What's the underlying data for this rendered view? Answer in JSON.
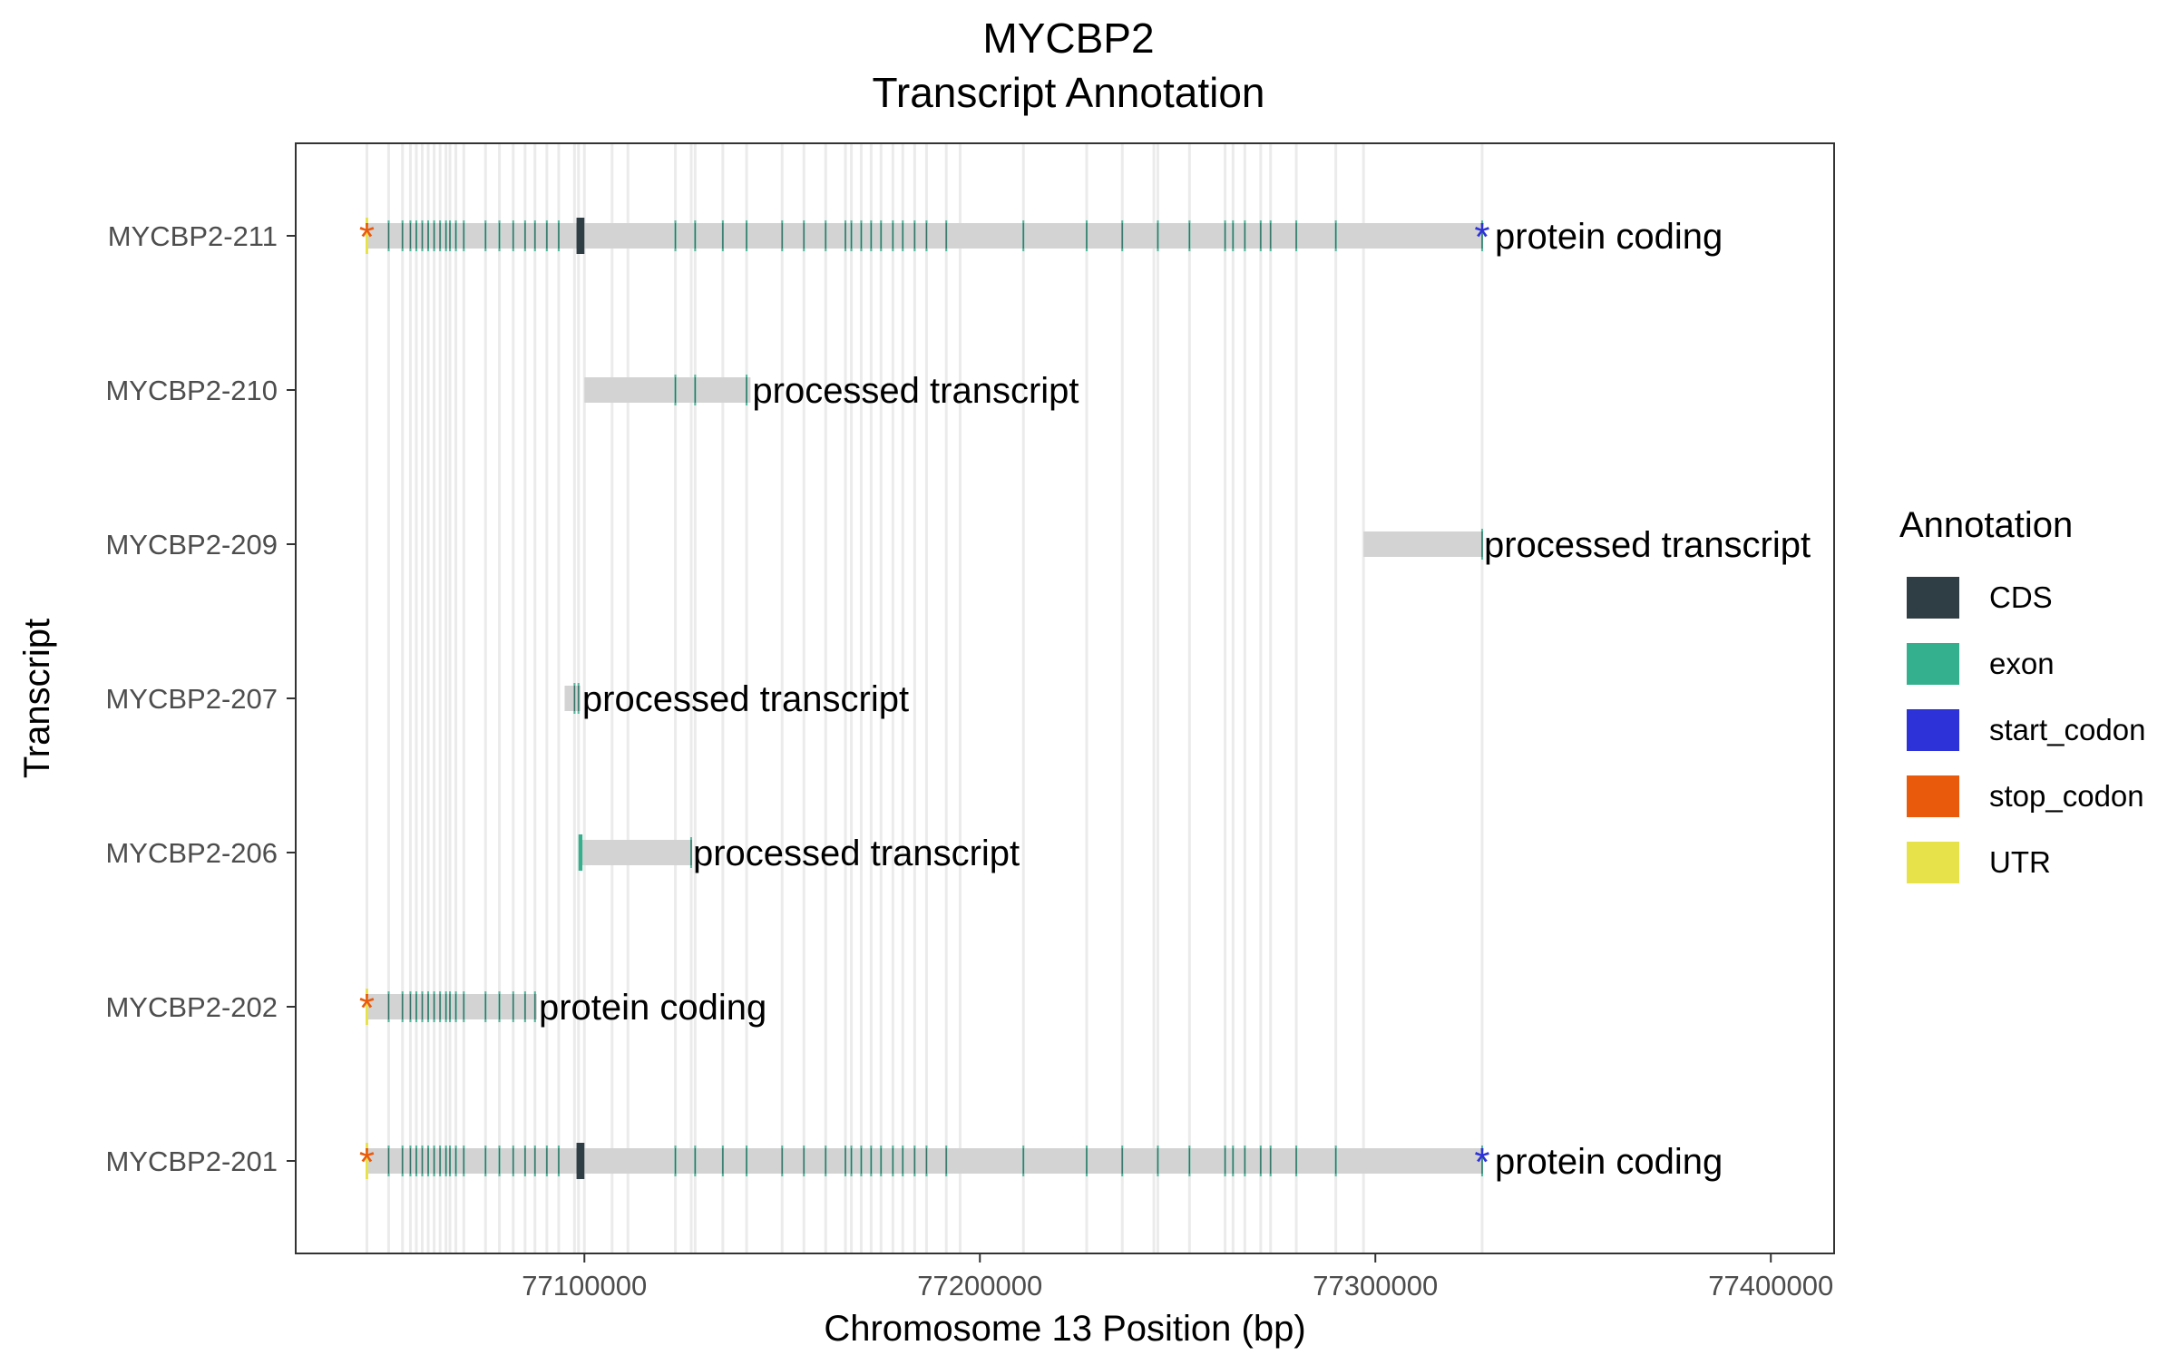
{
  "chart_data": {
    "type": "gantt",
    "title_line1": "MYCBP2",
    "title_line2": "Transcript Annotation",
    "xlabel": "Chromosome 13 Position (bp)",
    "ylabel": "Transcript",
    "xlim": [
      77027000,
      77416000
    ],
    "x_ticks": [
      77100000,
      77200000,
      77300000,
      77400000
    ],
    "x_tick_labels": [
      "77100000",
      "77200000",
      "77300000",
      "77400000"
    ],
    "grid": "faint vertical lines at exon boundaries",
    "legend": {
      "title": "Annotation",
      "position": "right",
      "entries": [
        {
          "name": "CDS",
          "color": "#2f3d45"
        },
        {
          "name": "exon",
          "color": "#35b08e"
        },
        {
          "name": "start_codon",
          "color": "#2d32d8"
        },
        {
          "name": "stop_codon",
          "color": "#ea5a0c"
        },
        {
          "name": "UTR",
          "color": "#e8e24a"
        }
      ]
    },
    "colors": {
      "transcript_body": "#d3d3d3",
      "exon_line": "#35b08e",
      "cds_line": "#2f3d45",
      "start_codon": "#2d32d8",
      "stop_codon": "#ea5a0c",
      "utr": "#e8e24a",
      "guide_line": "#ebebeb"
    },
    "transcripts": [
      {
        "name": "MYCBP2-211",
        "biotype": "protein coding",
        "start": 77045000,
        "end": 77327000,
        "stop_codon": 77045000,
        "start_codon": 77327000,
        "utr": 77045000,
        "cds_block": [
          77098000,
          77100000
        ]
      },
      {
        "name": "MYCBP2-210",
        "biotype": "processed transcript",
        "start": 77100000,
        "end": 77142000
      },
      {
        "name": "MYCBP2-209",
        "biotype": "processed transcript",
        "start": 77297000,
        "end": 77327000
      },
      {
        "name": "MYCBP2-207",
        "biotype": "processed transcript",
        "start": 77095000,
        "end": 77099000
      },
      {
        "name": "MYCBP2-206",
        "biotype": "processed transcript",
        "start": 77099000,
        "end": 77127000,
        "exon_block": [
          77098500,
          77099500
        ]
      },
      {
        "name": "MYCBP2-202",
        "biotype": "protein coding",
        "start": 77045000,
        "end": 77088000,
        "stop_codon": 77045000,
        "utr": 77045000
      },
      {
        "name": "MYCBP2-201",
        "biotype": "protein coding",
        "start": 77045000,
        "end": 77327000,
        "stop_codon": 77045000,
        "start_codon": 77327000,
        "utr": 77045000,
        "cds_block": [
          77098000,
          77100000
        ]
      }
    ],
    "exon_positions": {
      "MYCBP2-211": [
        77050500,
        77054000,
        77056000,
        77057500,
        77059000,
        77060500,
        77062000,
        77063500,
        77065000,
        77066000,
        77067500,
        77069500,
        77075000,
        77078500,
        77082000,
        77085000,
        77087500,
        77090500,
        77093500,
        77123000,
        77128000,
        77135000,
        77141000,
        77150000,
        77155500,
        77161000,
        77166000,
        77167500,
        77170000,
        77172500,
        77175000,
        77178000,
        77180500,
        77183500,
        77186500,
        77191500,
        77211000,
        77227000,
        77236000,
        77245000,
        77253000,
        77262000,
        77264000,
        77267000,
        77271000,
        77273500,
        77280000,
        77290000,
        77327000
      ],
      "MYCBP2-210": [
        77123000,
        77128000,
        77141000
      ],
      "MYCBP2-209": [
        77327000
      ],
      "MYCBP2-207": [
        77097500,
        77098500
      ],
      "MYCBP2-206": [
        77127000
      ],
      "MYCBP2-202": [
        77050500,
        77054000,
        77056000,
        77057500,
        77059000,
        77060500,
        77062000,
        77063500,
        77065000,
        77066000,
        77067500,
        77069500,
        77075000,
        77078500,
        77082000,
        77085000,
        77087500
      ],
      "MYCBP2-201": [
        77050500,
        77054000,
        77056000,
        77057500,
        77059000,
        77060500,
        77062000,
        77063500,
        77065000,
        77066000,
        77067500,
        77069500,
        77075000,
        77078500,
        77082000,
        77085000,
        77087500,
        77090500,
        77093500,
        77123000,
        77128000,
        77135000,
        77141000,
        77150000,
        77155500,
        77161000,
        77166000,
        77167500,
        77170000,
        77172500,
        77175000,
        77178000,
        77180500,
        77183500,
        77186500,
        77191500,
        77211000,
        77227000,
        77236000,
        77245000,
        77253000,
        77262000,
        77264000,
        77267000,
        77271000,
        77273500,
        77280000,
        77290000,
        77327000
      ]
    },
    "guide_positions": [
      77045000,
      77050500,
      77054000,
      77056000,
      77057500,
      77059000,
      77060500,
      77062000,
      77063500,
      77065000,
      77066000,
      77067500,
      77069500,
      77075000,
      77078500,
      77082000,
      77085000,
      77087500,
      77090500,
      77093500,
      77097500,
      77098500,
      77100000,
      77107000,
      77111000,
      77123000,
      77127000,
      77128000,
      77135000,
      77141000,
      77150000,
      77155500,
      77161000,
      77166000,
      77167500,
      77170000,
      77172500,
      77175000,
      77178000,
      77180500,
      77183500,
      77186500,
      77191500,
      77195000,
      77211000,
      77227000,
      77236000,
      77244000,
      77245000,
      77253000,
      77262000,
      77264000,
      77267000,
      77271000,
      77273500,
      77280000,
      77290000,
      77297000,
      77327000
    ]
  }
}
